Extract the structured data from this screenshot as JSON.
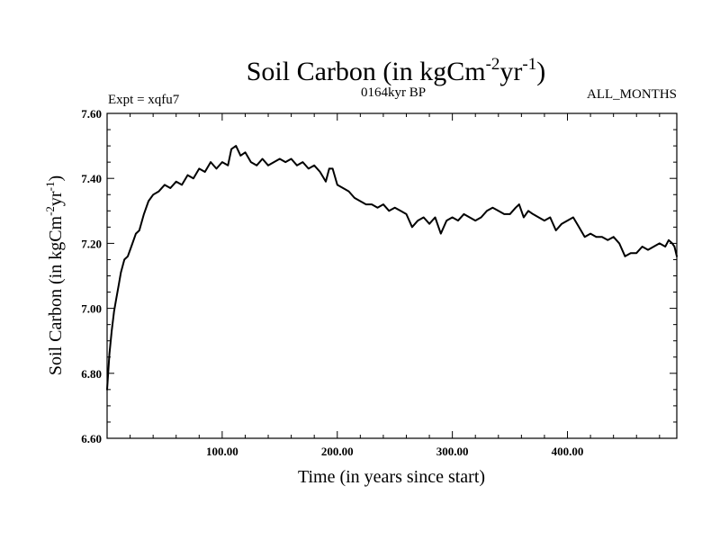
{
  "chart_data": {
    "type": "line",
    "title": {
      "main": "Soil Carbon (in kgCm",
      "sup1": "-2",
      "mid": "yr",
      "sup2": "-1",
      "end": ")"
    },
    "subtitle_left": "Expt = xqfu7",
    "subtitle_center": "0164kyr BP",
    "subtitle_right": "ALL_MONTHS",
    "xlabel": "Time (in years since start)",
    "ylabel": {
      "main": "Soil Carbon (in kgCm",
      "sup1": "-2",
      "mid": "yr",
      "sup2": "-1",
      "end": ")"
    },
    "xlim": [
      0,
      495
    ],
    "ylim": [
      6.6,
      7.6
    ],
    "x_ticks": [
      100,
      200,
      300,
      400
    ],
    "x_tick_labels": [
      "100.00",
      "200.00",
      "300.00",
      "400.00"
    ],
    "y_ticks": [
      6.6,
      6.8,
      7.0,
      7.2,
      7.4,
      7.6
    ],
    "y_tick_labels": [
      "6.60",
      "6.80",
      "7.00",
      "7.20",
      "7.40",
      "7.60"
    ],
    "series": [
      {
        "name": "Soil Carbon",
        "x": [
          0,
          2,
          4,
          6,
          8,
          10,
          12,
          15,
          18,
          21,
          25,
          28,
          32,
          36,
          40,
          45,
          50,
          55,
          60,
          65,
          70,
          75,
          80,
          85,
          90,
          95,
          100,
          105,
          108,
          112,
          116,
          120,
          125,
          130,
          135,
          140,
          145,
          150,
          155,
          160,
          165,
          170,
          175,
          180,
          185,
          190,
          193,
          196,
          200,
          205,
          210,
          215,
          220,
          225,
          230,
          235,
          240,
          245,
          250,
          255,
          260,
          265,
          270,
          275,
          280,
          285,
          290,
          295,
          300,
          305,
          310,
          315,
          320,
          325,
          330,
          335,
          340,
          345,
          350,
          355,
          358,
          362,
          366,
          370,
          375,
          380,
          385,
          390,
          395,
          400,
          405,
          410,
          415,
          420,
          425,
          430,
          435,
          440,
          445,
          450,
          455,
          460,
          465,
          470,
          475,
          480,
          485,
          488,
          491,
          493,
          495
        ],
        "y": [
          6.75,
          6.86,
          6.93,
          6.99,
          7.03,
          7.07,
          7.11,
          7.15,
          7.16,
          7.19,
          7.23,
          7.24,
          7.29,
          7.33,
          7.35,
          7.36,
          7.38,
          7.37,
          7.39,
          7.38,
          7.41,
          7.4,
          7.43,
          7.42,
          7.45,
          7.43,
          7.45,
          7.44,
          7.49,
          7.5,
          7.47,
          7.48,
          7.45,
          7.44,
          7.46,
          7.44,
          7.45,
          7.46,
          7.45,
          7.46,
          7.44,
          7.45,
          7.43,
          7.44,
          7.42,
          7.39,
          7.43,
          7.43,
          7.38,
          7.37,
          7.36,
          7.34,
          7.33,
          7.32,
          7.32,
          7.31,
          7.32,
          7.3,
          7.31,
          7.3,
          7.29,
          7.25,
          7.27,
          7.28,
          7.26,
          7.28,
          7.23,
          7.27,
          7.28,
          7.27,
          7.29,
          7.28,
          7.27,
          7.28,
          7.3,
          7.31,
          7.3,
          7.29,
          7.29,
          7.31,
          7.32,
          7.28,
          7.3,
          7.29,
          7.28,
          7.27,
          7.28,
          7.24,
          7.26,
          7.27,
          7.28,
          7.25,
          7.22,
          7.23,
          7.22,
          7.22,
          7.21,
          7.22,
          7.2,
          7.16,
          7.17,
          7.17,
          7.19,
          7.18,
          7.19,
          7.2,
          7.19,
          7.21,
          7.2,
          7.19,
          7.16
        ]
      }
    ]
  }
}
